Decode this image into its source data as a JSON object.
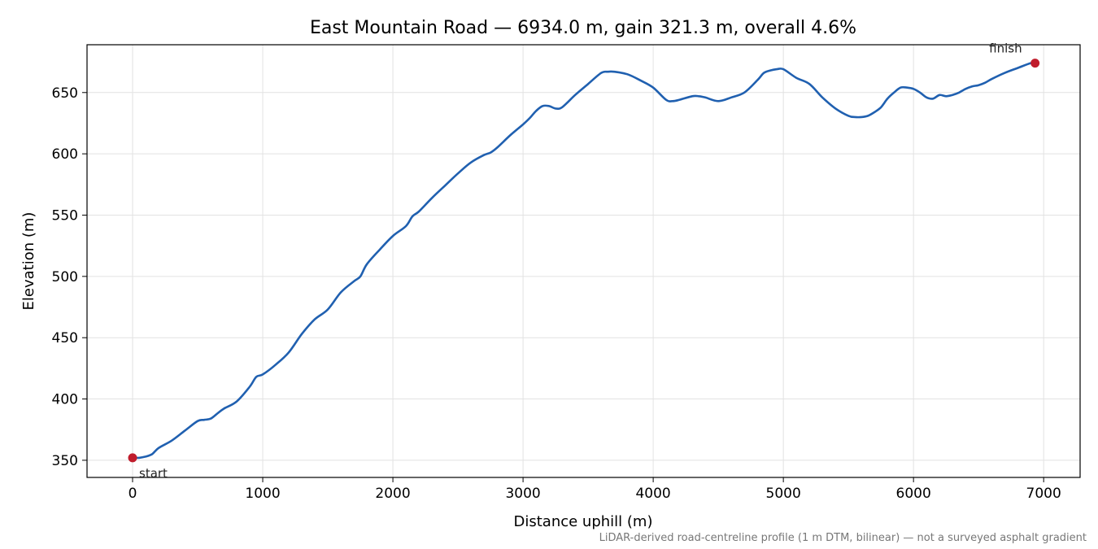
{
  "chart_data": {
    "type": "line",
    "title": "East Mountain Road — 6934.0 m, gain 321.3 m, overall 4.6%",
    "xlabel": "Distance uphill (m)",
    "ylabel": "Elevation (m)",
    "xlim": [
      -350,
      7280
    ],
    "ylim": [
      336,
      689
    ],
    "x_ticks": [
      0,
      1000,
      2000,
      3000,
      4000,
      5000,
      6000,
      7000
    ],
    "y_ticks": [
      350,
      400,
      450,
      500,
      550,
      600,
      650
    ],
    "grid": true,
    "footnote": "LiDAR-derived road-centreline profile (1 m DTM, bilinear) — not a surveyed asphalt gradient",
    "colors": {
      "line": "#2060b0",
      "marker": "#c01c2c",
      "grid": "#e2e2e2"
    },
    "series": [
      {
        "x": [
          0,
          50,
          100,
          150,
          200,
          300,
          400,
          500,
          550,
          600,
          650,
          700,
          800,
          900,
          950,
          1000,
          1100,
          1200,
          1300,
          1400,
          1500,
          1600,
          1700,
          1750,
          1800,
          1900,
          2000,
          2100,
          2150,
          2200,
          2300,
          2400,
          2500,
          2600,
          2700,
          2750,
          2800,
          2900,
          3000,
          3050,
          3100,
          3150,
          3200,
          3250,
          3300,
          3400,
          3500,
          3600,
          3650,
          3700,
          3800,
          3900,
          4000,
          4100,
          4150,
          4200,
          4300,
          4350,
          4400,
          4500,
          4600,
          4700,
          4800,
          4850,
          4900,
          4950,
          5000,
          5100,
          5200,
          5300,
          5400,
          5500,
          5550,
          5600,
          5650,
          5700,
          5750,
          5800,
          5850,
          5900,
          5950,
          6000,
          6050,
          6100,
          6150,
          6200,
          6250,
          6300,
          6350,
          6400,
          6450,
          6500,
          6550,
          6600,
          6700,
          6800,
          6900,
          6934
        ],
        "y": [
          352,
          352,
          353,
          355,
          360,
          366,
          374,
          382,
          383,
          384,
          388,
          392,
          398,
          410,
          418,
          420,
          428,
          438,
          453,
          465,
          473,
          487,
          496,
          500,
          510,
          522,
          533,
          541,
          549,
          553,
          564,
          574,
          584,
          593,
          599,
          601,
          605,
          615,
          624,
          629,
          635,
          639,
          639,
          637,
          638,
          648,
          657,
          666,
          667,
          667,
          665,
          660,
          654,
          644,
          643,
          644,
          647,
          647,
          646,
          643,
          646,
          650,
          660,
          666,
          668,
          669,
          669,
          662,
          657,
          646,
          637,
          631,
          630,
          630,
          631,
          634,
          638,
          645,
          650,
          654,
          654,
          653,
          650,
          646,
          645,
          648,
          647,
          648,
          650,
          653,
          655,
          656,
          658,
          661,
          666,
          670,
          674,
          674
        ]
      }
    ],
    "annotations": [
      {
        "text": "start",
        "x": 0,
        "y": 352
      },
      {
        "text": "finish",
        "x": 6934,
        "y": 674
      }
    ]
  }
}
